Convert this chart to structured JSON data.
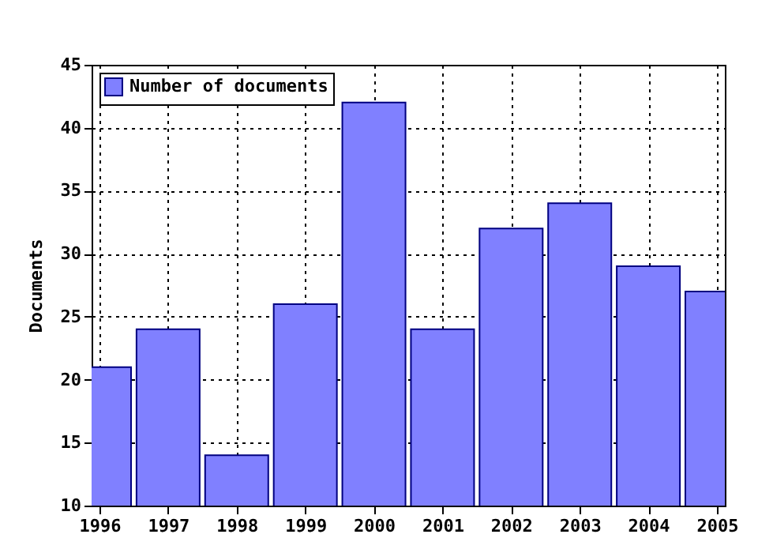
{
  "chart_data": {
    "type": "bar",
    "ylabel": "Documents",
    "x": [
      1996,
      1997,
      1998,
      1999,
      2000,
      2001,
      2002,
      2003,
      2004,
      2005
    ],
    "series": [
      {
        "name": "Number of documents",
        "color": "#8080ff",
        "values": [
          21,
          24,
          14,
          26,
          42,
          24,
          32,
          34,
          29,
          27
        ]
      }
    ],
    "xlim": [
      1996,
      2005
    ],
    "xticks": [
      1996,
      1997,
      1998,
      1999,
      2000,
      2001,
      2002,
      2003,
      2004,
      2005
    ],
    "ylim": [
      10,
      45
    ],
    "yticks": [
      10,
      15,
      20,
      25,
      30,
      35,
      40,
      45
    ],
    "grid": true,
    "legend": "top left"
  }
}
